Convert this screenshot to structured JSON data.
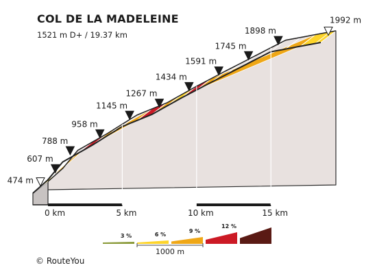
{
  "chart_data": {
    "type": "area",
    "title": "COL DE LA MADELEINE",
    "subtitle": "1521 m D+ / 19.37 km",
    "distance_km": 19.37,
    "elevation_start_m": 474,
    "elevation_end_m": 1992,
    "elevation_markers": [
      {
        "km": 0,
        "label": "474 m",
        "kind": "start"
      },
      {
        "km": 1,
        "label": "607 m",
        "kind": "km"
      },
      {
        "km": 2,
        "label": "788 m",
        "kind": "km"
      },
      {
        "km": 4,
        "label": "958 m",
        "kind": "km"
      },
      {
        "km": 6,
        "label": "1145 m",
        "kind": "km"
      },
      {
        "km": 8,
        "label": "1267 m",
        "kind": "km"
      },
      {
        "km": 10,
        "label": "1434 m",
        "kind": "km"
      },
      {
        "km": 12,
        "label": "1591 m",
        "kind": "km"
      },
      {
        "km": 14,
        "label": "1745 m",
        "kind": "km"
      },
      {
        "km": 16,
        "label": "1898 m",
        "kind": "km"
      },
      {
        "km": 19.37,
        "label": "1992 m",
        "kind": "end"
      }
    ],
    "segments": [
      {
        "from_km": 0,
        "to_km": 1,
        "color": "#FDD42A"
      },
      {
        "from_km": 1,
        "to_km": 3,
        "color": "#EFA716"
      },
      {
        "from_km": 3,
        "to_km": 4,
        "color": "#CC1A25"
      },
      {
        "from_km": 4,
        "to_km": 7,
        "color": "#EFA716"
      },
      {
        "from_km": 7,
        "to_km": 8,
        "color": "#CC1A25"
      },
      {
        "from_km": 8,
        "to_km": 9,
        "color": "#EFA716"
      },
      {
        "from_km": 9,
        "to_km": 10,
        "color": "#FDD42A"
      },
      {
        "from_km": 10,
        "to_km": 11,
        "color": "#CC1A25"
      },
      {
        "from_km": 11,
        "to_km": 18,
        "color": "#EFA716"
      },
      {
        "from_km": 18,
        "to_km": 19.37,
        "color": "#FDD42A"
      }
    ],
    "x_ticks": [
      {
        "km": 0,
        "label": "0 km"
      },
      {
        "km": 5,
        "label": "5 km"
      },
      {
        "km": 10,
        "label": "10 km"
      },
      {
        "km": 15,
        "label": "15 km"
      }
    ],
    "gradient_legend": [
      {
        "label": "3 %",
        "color": "#8A9A3A"
      },
      {
        "label": "6 %",
        "color": "#FDD42A"
      },
      {
        "label": "9 %",
        "color": "#EFA716"
      },
      {
        "label": "12 %",
        "color": "#CC1A25"
      },
      {
        "label": "",
        "color": "#5A1A14"
      }
    ],
    "scale_label": "1000 m"
  },
  "credit": "© RouteYou"
}
